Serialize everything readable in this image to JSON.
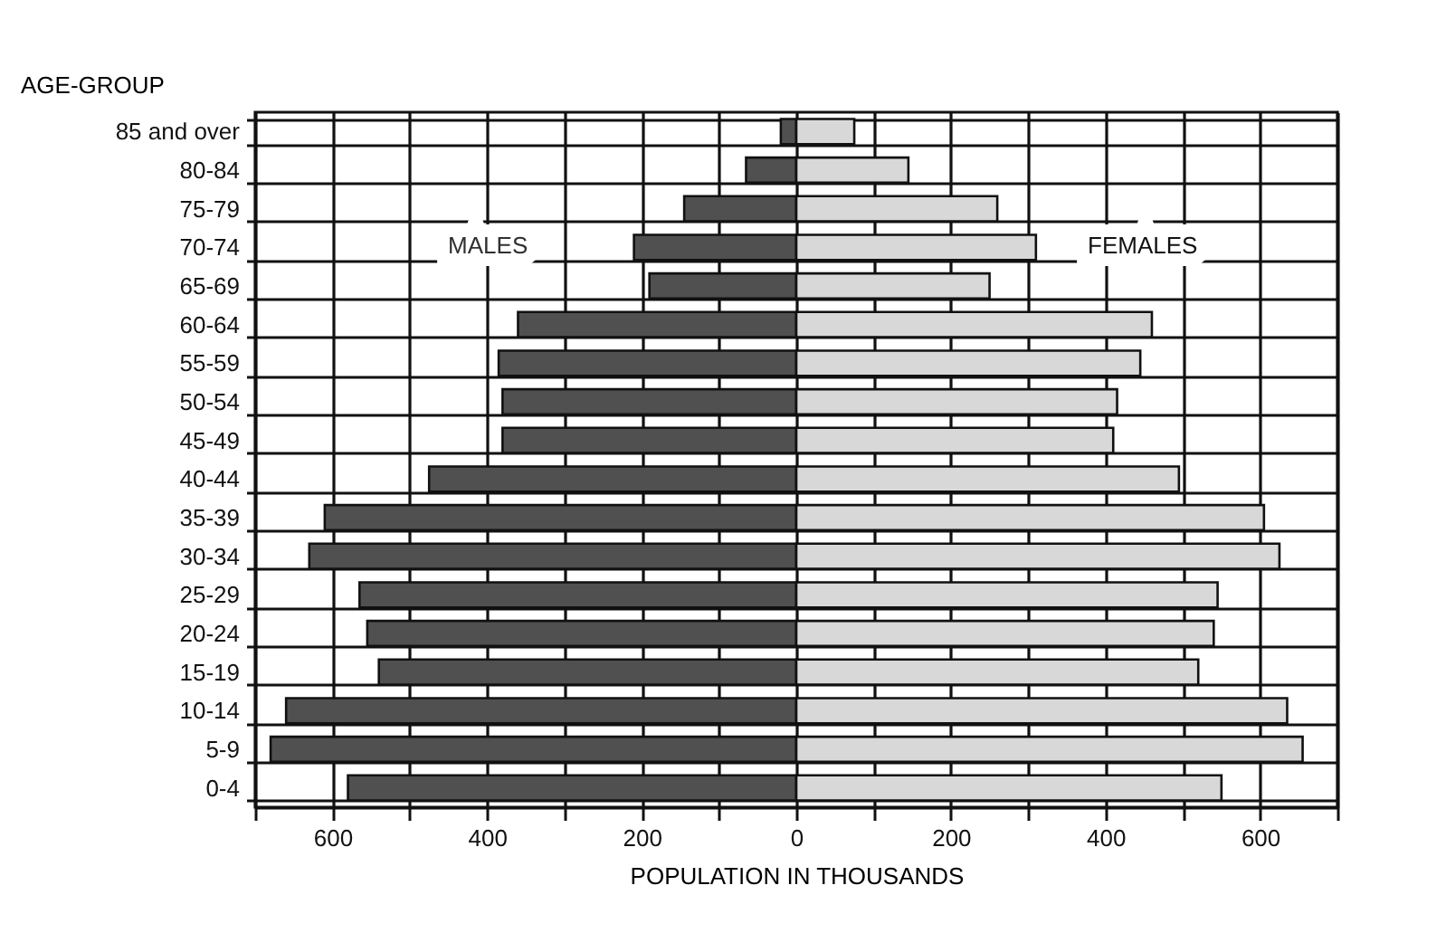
{
  "chart_data": {
    "type": "bar",
    "orientation": "horizontal",
    "ylabel": "AGE-GROUP",
    "xlabel": "POPULATION IN THOUSANDS",
    "categories": [
      "85 and over",
      "80-84",
      "75-79",
      "70-74",
      "65-69",
      "60-64",
      "55-59",
      "50-54",
      "45-49",
      "40-44",
      "35-39",
      "30-34",
      "25-29",
      "20-24",
      "15-19",
      "10-14",
      "5-9",
      "0-4"
    ],
    "series": [
      {
        "name": "MALES",
        "color": "#505050",
        "values": [
          -20,
          -65,
          -145,
          -210,
          -190,
          -360,
          -385,
          -380,
          -380,
          -475,
          -610,
          -630,
          -565,
          -555,
          -540,
          -660,
          -680,
          -580
        ]
      },
      {
        "name": "FEMALES",
        "color": "#d8d8d8",
        "values": [
          75,
          145,
          260,
          310,
          250,
          460,
          445,
          415,
          410,
          495,
          605,
          625,
          545,
          540,
          520,
          635,
          655,
          550
        ]
      }
    ],
    "xlim": [
      -700,
      700
    ],
    "xticks": [
      {
        "value": -700,
        "label": null
      },
      {
        "value": -600,
        "label": "600"
      },
      {
        "value": -500,
        "label": null
      },
      {
        "value": -400,
        "label": "400"
      },
      {
        "value": -300,
        "label": null
      },
      {
        "value": -200,
        "label": "200"
      },
      {
        "value": -100,
        "label": null
      },
      0,
      {
        "value": 100,
        "label": null
      },
      200,
      {
        "value": 300,
        "label": null
      },
      400,
      {
        "value": 500,
        "label": null
      },
      600,
      {
        "value": 700,
        "label": null
      }
    ],
    "grid": true,
    "legend": false,
    "stacked": true
  }
}
